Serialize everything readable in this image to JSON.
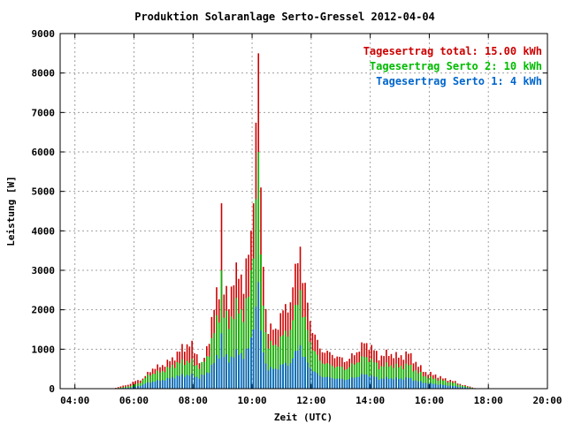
{
  "chart_data": {
    "type": "bar",
    "title": "Produktion Solaranlage Serto-Gressel 2012-04-04",
    "xlabel": "Zeit (UTC)",
    "ylabel": "Leistung [W]",
    "xlim": [
      3.5,
      20
    ],
    "ylim": [
      0,
      9000
    ],
    "grid": true,
    "x_ticks": [
      {
        "value": 4,
        "label": "04:00"
      },
      {
        "value": 6,
        "label": "06:00"
      },
      {
        "value": 8,
        "label": "08:00"
      },
      {
        "value": 10,
        "label": "10:00"
      },
      {
        "value": 12,
        "label": "12:00"
      },
      {
        "value": 14,
        "label": "14:00"
      },
      {
        "value": 16,
        "label": "16:00"
      },
      {
        "value": 18,
        "label": "18:00"
      },
      {
        "value": 20,
        "label": "20:00"
      }
    ],
    "y_ticks": [
      0,
      1000,
      2000,
      3000,
      4000,
      5000,
      6000,
      7000,
      8000,
      9000
    ],
    "legend_position": "top-right",
    "legend": [
      {
        "text": "Tagesertrag total: 15.00 kWh",
        "color": "#cc0000"
      },
      {
        "text": "Tagesertrag Serto 2: 10 kWh",
        "color": "#00bb00"
      },
      {
        "text": "Tagesertrag Serto 1: 4 kWh",
        "color": "#0066cc"
      }
    ],
    "series_colors": {
      "total": "#cc0000",
      "serto2": "#00bb00",
      "serto1": "#0066cc"
    },
    "time_resolution_hours": 0.0833,
    "series_keyframes": {
      "total": [
        [
          5.3,
          0
        ],
        [
          5.5,
          50
        ],
        [
          5.8,
          100
        ],
        [
          6.0,
          180
        ],
        [
          6.3,
          250
        ],
        [
          6.6,
          500
        ],
        [
          7.0,
          600
        ],
        [
          7.3,
          750
        ],
        [
          7.6,
          1000
        ],
        [
          7.9,
          1150
        ],
        [
          8.1,
          900
        ],
        [
          8.3,
          600
        ],
        [
          8.5,
          1100
        ],
        [
          8.7,
          2000
        ],
        [
          8.95,
          2800
        ],
        [
          9.2,
          2100
        ],
        [
          9.4,
          3000
        ],
        [
          9.7,
          2700
        ],
        [
          9.9,
          3500
        ],
        [
          10.1,
          5000
        ],
        [
          10.17,
          8700
        ],
        [
          10.3,
          4500
        ],
        [
          10.5,
          1500
        ],
        [
          10.8,
          1500
        ],
        [
          11.0,
          1900
        ],
        [
          11.3,
          2200
        ],
        [
          11.55,
          3300
        ],
        [
          11.8,
          2500
        ],
        [
          12.0,
          1600
        ],
        [
          12.3,
          1000
        ],
        [
          12.6,
          900
        ],
        [
          12.9,
          800
        ],
        [
          13.2,
          700
        ],
        [
          13.5,
          900
        ],
        [
          13.8,
          1150
        ],
        [
          14.0,
          1100
        ],
        [
          14.3,
          800
        ],
        [
          14.6,
          900
        ],
        [
          15.0,
          800
        ],
        [
          15.3,
          900
        ],
        [
          15.6,
          600
        ],
        [
          15.9,
          400
        ],
        [
          16.2,
          350
        ],
        [
          16.5,
          250
        ],
        [
          16.8,
          200
        ],
        [
          17.1,
          100
        ],
        [
          17.4,
          50
        ],
        [
          17.6,
          0
        ]
      ],
      "serto2": [
        [
          5.3,
          0
        ],
        [
          5.6,
          30
        ],
        [
          5.9,
          70
        ],
        [
          6.2,
          150
        ],
        [
          6.5,
          350
        ],
        [
          7.0,
          450
        ],
        [
          7.5,
          650
        ],
        [
          7.9,
          700
        ],
        [
          8.2,
          550
        ],
        [
          8.5,
          800
        ],
        [
          8.7,
          1400
        ],
        [
          8.95,
          2100
        ],
        [
          9.2,
          1600
        ],
        [
          9.4,
          2000
        ],
        [
          9.7,
          1900
        ],
        [
          9.9,
          2400
        ],
        [
          10.1,
          3800
        ],
        [
          10.17,
          5900
        ],
        [
          10.3,
          3000
        ],
        [
          10.5,
          1100
        ],
        [
          10.8,
          1100
        ],
        [
          11.0,
          1300
        ],
        [
          11.3,
          1500
        ],
        [
          11.55,
          2200
        ],
        [
          11.8,
          1700
        ],
        [
          12.0,
          1100
        ],
        [
          12.3,
          700
        ],
        [
          12.6,
          600
        ],
        [
          12.9,
          550
        ],
        [
          13.2,
          500
        ],
        [
          13.5,
          650
        ],
        [
          13.8,
          800
        ],
        [
          14.0,
          750
        ],
        [
          14.3,
          550
        ],
        [
          14.6,
          600
        ],
        [
          15.0,
          550
        ],
        [
          15.3,
          600
        ],
        [
          15.6,
          420
        ],
        [
          15.9,
          300
        ],
        [
          16.2,
          250
        ],
        [
          16.5,
          200
        ],
        [
          16.8,
          150
        ],
        [
          17.1,
          80
        ],
        [
          17.4,
          30
        ],
        [
          17.6,
          0
        ]
      ],
      "serto1": [
        [
          5.3,
          0
        ],
        [
          5.6,
          15
        ],
        [
          5.9,
          30
        ],
        [
          6.2,
          70
        ],
        [
          6.5,
          160
        ],
        [
          7.0,
          220
        ],
        [
          7.5,
          320
        ],
        [
          7.9,
          350
        ],
        [
          8.2,
          280
        ],
        [
          8.5,
          400
        ],
        [
          8.7,
          650
        ],
        [
          8.95,
          950
        ],
        [
          9.2,
          700
        ],
        [
          9.4,
          900
        ],
        [
          9.7,
          850
        ],
        [
          9.9,
          1050
        ],
        [
          10.1,
          1600
        ],
        [
          10.17,
          2600
        ],
        [
          10.3,
          1300
        ],
        [
          10.5,
          500
        ],
        [
          10.8,
          500
        ],
        [
          11.0,
          600
        ],
        [
          11.3,
          650
        ],
        [
          11.55,
          1000
        ],
        [
          11.8,
          750
        ],
        [
          12.0,
          500
        ],
        [
          12.3,
          320
        ],
        [
          12.6,
          280
        ],
        [
          12.9,
          250
        ],
        [
          13.2,
          230
        ],
        [
          13.5,
          290
        ],
        [
          13.8,
          360
        ],
        [
          14.0,
          340
        ],
        [
          14.3,
          250
        ],
        [
          14.6,
          270
        ],
        [
          15.0,
          250
        ],
        [
          15.3,
          270
        ],
        [
          15.6,
          190
        ],
        [
          15.9,
          140
        ],
        [
          16.2,
          120
        ],
        [
          16.5,
          90
        ],
        [
          16.8,
          70
        ],
        [
          17.1,
          40
        ],
        [
          17.4,
          15
        ],
        [
          17.6,
          0
        ]
      ]
    },
    "series_spikes": {
      "total": [
        [
          8.95,
          4700
        ],
        [
          9.45,
          3200
        ],
        [
          10.0,
          4000
        ],
        [
          10.07,
          4700
        ],
        [
          10.2,
          8500
        ],
        [
          11.6,
          3600
        ]
      ],
      "serto2": [
        [
          8.95,
          3000
        ],
        [
          9.45,
          2300
        ],
        [
          10.0,
          3000
        ],
        [
          10.07,
          3300
        ],
        [
          10.2,
          6000
        ],
        [
          11.6,
          2500
        ]
      ],
      "serto1": [
        [
          8.95,
          1400
        ],
        [
          9.45,
          1000
        ],
        [
          10.0,
          1300
        ],
        [
          10.07,
          1500
        ],
        [
          10.2,
          2700
        ],
        [
          11.6,
          1100
        ]
      ]
    }
  }
}
